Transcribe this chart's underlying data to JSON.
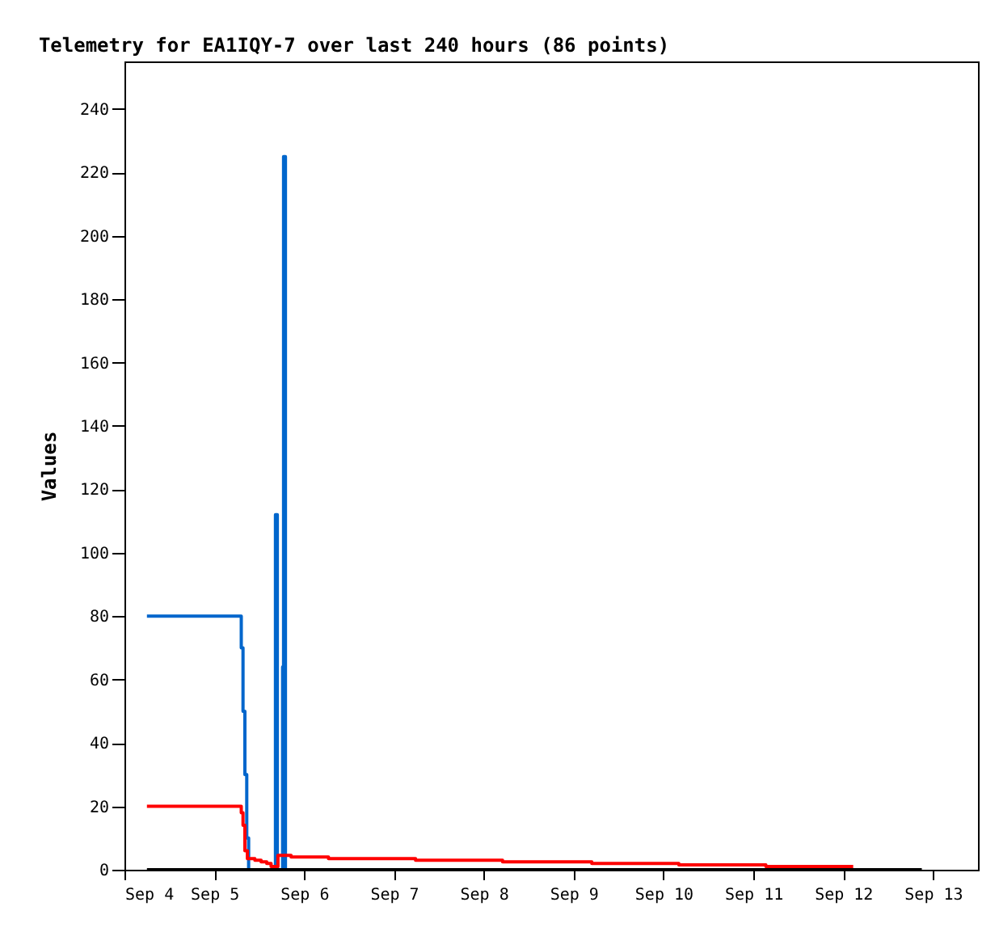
{
  "chart_data": {
    "type": "step",
    "title": "Telemetry for EA1IQY-7 over last 240 hours (86 points)",
    "ylabel": "Values",
    "xlim": [
      "--09-04",
      "--09-13T12:00"
    ],
    "xticks": [
      {
        "value": "--09-04",
        "label": "Sep 4"
      },
      {
        "value": "--09-05",
        "label": "Sep 5"
      },
      {
        "value": "--09-06",
        "label": "Sep 6"
      },
      {
        "value": "--09-07",
        "label": "Sep 7"
      },
      {
        "value": "--09-08",
        "label": "Sep 8"
      },
      {
        "value": "--09-09",
        "label": "Sep 9"
      },
      {
        "value": "--09-10",
        "label": "Sep 10"
      },
      {
        "value": "--09-11",
        "label": "Sep 11"
      },
      {
        "value": "--09-12",
        "label": "Sep 12"
      },
      {
        "value": "--09-13",
        "label": "Sep 13"
      }
    ],
    "ylim": [
      0,
      255
    ],
    "yticks": [
      0,
      20,
      40,
      60,
      80,
      100,
      120,
      140,
      160,
      180,
      200,
      220,
      240
    ],
    "grid": false,
    "legend": false,
    "series": [
      {
        "color": "#0066cc",
        "x": [
          "--09-04T06:00",
          "--09-05T07:12",
          "--09-05T07:40",
          "--09-05T08:10",
          "--09-05T08:40",
          "--09-05T09:10",
          "--09-05T16:20",
          "--09-05T16:50",
          "--09-05T18:15",
          "--09-05T18:30",
          "--09-05T19:00"
        ],
        "values": [
          80,
          70,
          50,
          30,
          10,
          0,
          112,
          0,
          64,
          225,
          0
        ]
      },
      {
        "color": "#ff0000",
        "x": [
          "--09-04T06:00",
          "--09-05T07:12",
          "--09-05T07:40",
          "--09-05T08:10",
          "--09-05T08:50",
          "--09-05T10:50",
          "--09-05T12:30",
          "--09-05T14:00",
          "--09-05T15:10",
          "--09-05T17:00",
          "--09-05T20:30",
          "--09-06T06:30",
          "--09-07T05:45",
          "--09-08T05:00",
          "--09-09T04:50",
          "--09-10T04:05",
          "--09-11T03:20",
          "--09-12T02:40"
        ],
        "values": [
          20,
          18,
          14,
          6,
          3.5,
          3,
          2.5,
          2,
          1,
          4.5,
          4,
          3.5,
          3,
          2.5,
          2,
          1.5,
          1,
          1
        ]
      },
      {
        "color": "#000000",
        "x": [
          "--09-04T06:00",
          "--09-12T21:00"
        ],
        "values": [
          0,
          0
        ]
      }
    ]
  }
}
